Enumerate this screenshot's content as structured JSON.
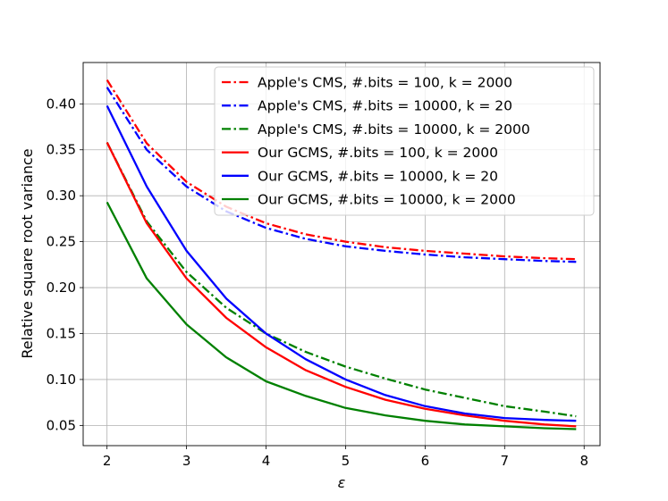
{
  "chart_data": {
    "type": "line",
    "title": "",
    "xlabel": "ε",
    "ylabel": "Relative square root variance",
    "xlim": [
      1.7,
      8.2
    ],
    "ylim": [
      0.028,
      0.445
    ],
    "xticks": [
      2,
      3,
      4,
      5,
      6,
      7,
      8
    ],
    "yticks": [
      0.05,
      0.1,
      0.15,
      0.2,
      0.25,
      0.3,
      0.35,
      0.4
    ],
    "xtick_labels": [
      "2",
      "3",
      "4",
      "5",
      "6",
      "7",
      "8"
    ],
    "ytick_labels": [
      "0.05",
      "0.10",
      "0.15",
      "0.20",
      "0.25",
      "0.30",
      "0.35",
      "0.40"
    ],
    "grid": true,
    "legend_position": "top-right",
    "x": [
      2,
      2.5,
      3,
      3.5,
      4,
      4.5,
      5,
      5.5,
      6,
      6.5,
      7,
      7.5,
      7.9
    ],
    "series": [
      {
        "name": "Apple's CMS, #.bits = 100, k = 2000",
        "color": "#ff0000",
        "style": "dashdot",
        "values": [
          0.426,
          0.357,
          0.315,
          0.288,
          0.27,
          0.258,
          0.25,
          0.244,
          0.24,
          0.237,
          0.234,
          0.232,
          0.231
        ]
      },
      {
        "name": "Apple's CMS, #.bits = 10000, k = 20",
        "color": "#0000ff",
        "style": "dashdot",
        "values": [
          0.418,
          0.35,
          0.31,
          0.283,
          0.265,
          0.253,
          0.245,
          0.24,
          0.236,
          0.233,
          0.231,
          0.229,
          0.228
        ]
      },
      {
        "name": "Apple's CMS, #.bits = 10000, k = 2000",
        "color": "#008000",
        "style": "dashdot",
        "values": [
          0.358,
          0.272,
          0.217,
          0.178,
          0.15,
          0.13,
          0.114,
          0.101,
          0.089,
          0.08,
          0.071,
          0.065,
          0.06
        ]
      },
      {
        "name": "Our GCMS, #.bits = 100, k = 2000",
        "color": "#ff0000",
        "style": "solid",
        "values": [
          0.358,
          0.27,
          0.21,
          0.167,
          0.135,
          0.11,
          0.092,
          0.078,
          0.068,
          0.061,
          0.055,
          0.051,
          0.049
        ]
      },
      {
        "name": "Our GCMS, #.bits = 10000, k = 20",
        "color": "#0000ff",
        "style": "solid",
        "values": [
          0.398,
          0.31,
          0.24,
          0.188,
          0.15,
          0.122,
          0.1,
          0.083,
          0.071,
          0.063,
          0.058,
          0.056,
          0.055
        ]
      },
      {
        "name": "Our GCMS, #.bits = 10000, k = 2000",
        "color": "#008000",
        "style": "solid",
        "values": [
          0.293,
          0.21,
          0.16,
          0.124,
          0.098,
          0.082,
          0.069,
          0.061,
          0.055,
          0.051,
          0.049,
          0.047,
          0.046
        ]
      }
    ]
  }
}
